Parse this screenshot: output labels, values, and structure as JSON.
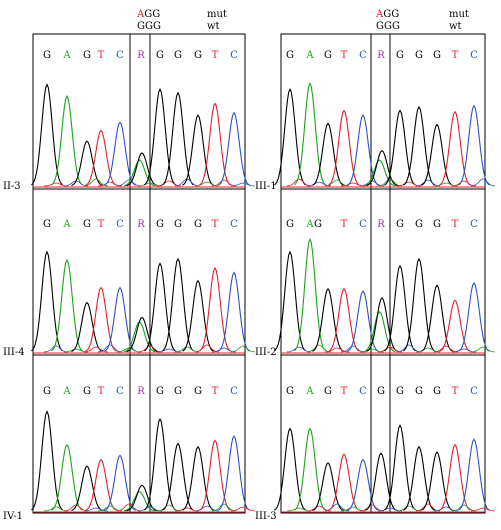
{
  "header": {
    "left": {
      "mut_seq_first": "A",
      "mut_seq_rest": "GG",
      "wt_seq": "GGG",
      "mut_label": "mut",
      "wt_label": "wt"
    },
    "right": {
      "mut_seq_first": "A",
      "mut_seq_rest": "GG",
      "wt_seq": "GGG",
      "mut_label": "mut",
      "wt_label": "wt"
    }
  },
  "colors": {
    "G": "#000000",
    "A": "#1aa31a",
    "T": "#e0222a",
    "C": "#2b55c6",
    "R": "#b030b0",
    "mutation_highlight": "#e0222a",
    "frame": "#000000",
    "baseline_red": "#e0222a"
  },
  "panels": [
    {
      "id": "II-3",
      "label": "II-3",
      "column": "left",
      "row": 0,
      "bases": [
        "G",
        "A",
        "G",
        "T",
        "C",
        "R",
        "G",
        "G",
        "G",
        "T",
        "C"
      ],
      "peak_heights": [
        0.86,
        0.76,
        0.38,
        0.47,
        0.54,
        0.28,
        0.82,
        0.79,
        0.6,
        0.7,
        0.62
      ],
      "r_secondary_height": 0.22
    },
    {
      "id": "III-4",
      "label": "III-4",
      "column": "left",
      "row": 1,
      "bases": [
        "G",
        "A",
        "G",
        "T",
        "C",
        "R",
        "G",
        "G",
        "G",
        "T",
        "C"
      ],
      "peak_heights": [
        0.87,
        0.8,
        0.43,
        0.56,
        0.56,
        0.3,
        0.77,
        0.81,
        0.62,
        0.73,
        0.69
      ],
      "r_secondary_height": 0.26
    },
    {
      "id": "IV-1",
      "label": "IV-1",
      "column": "left",
      "row": 2,
      "bases": [
        "G",
        "A",
        "G",
        "T",
        "C",
        "R",
        "G",
        "G",
        "G",
        "T",
        "C"
      ],
      "peak_heights": [
        0.93,
        0.62,
        0.42,
        0.48,
        0.52,
        0.24,
        0.86,
        0.63,
        0.6,
        0.66,
        0.7
      ],
      "r_secondary_height": 0.18
    },
    {
      "id": "III-1",
      "label": "III-1",
      "column": "right",
      "row": 0,
      "bases": [
        "G",
        "A",
        "G",
        "T",
        "C",
        "R",
        "G",
        "G",
        "G",
        "T",
        "C"
      ],
      "peak_heights": [
        0.82,
        0.87,
        0.53,
        0.64,
        0.6,
        0.3,
        0.64,
        0.67,
        0.52,
        0.63,
        0.68
      ],
      "r_secondary_height": 0.22
    },
    {
      "id": "III-2",
      "label": "III-2",
      "column": "right",
      "row": 1,
      "bases": [
        "G",
        "A",
        "G",
        "T",
        "C",
        "R",
        "G",
        "G",
        "G",
        "T",
        "C"
      ],
      "peak_heights": [
        0.87,
        0.98,
        0.55,
        0.55,
        0.53,
        0.47,
        0.75,
        0.81,
        0.58,
        0.45,
        0.6
      ],
      "r_secondary_height": 0.35
    },
    {
      "id": "III-3",
      "label": "III-3",
      "column": "right",
      "row": 2,
      "bases": [
        "G",
        "A",
        "G",
        "T",
        "C",
        "G",
        "G",
        "G",
        "G",
        "T",
        "C"
      ],
      "peak_heights": [
        0.77,
        0.77,
        0.45,
        0.53,
        0.48,
        0.54,
        0.8,
        0.6,
        0.55,
        0.62,
        0.67
      ],
      "r_secondary_height": 0
    }
  ],
  "panel_letter_display": {
    "III-2": [
      "G",
      "A",
      "G",
      "",
      "T",
      "C",
      "R",
      "G",
      "G",
      "G",
      "",
      "T",
      "C"
    ]
  }
}
